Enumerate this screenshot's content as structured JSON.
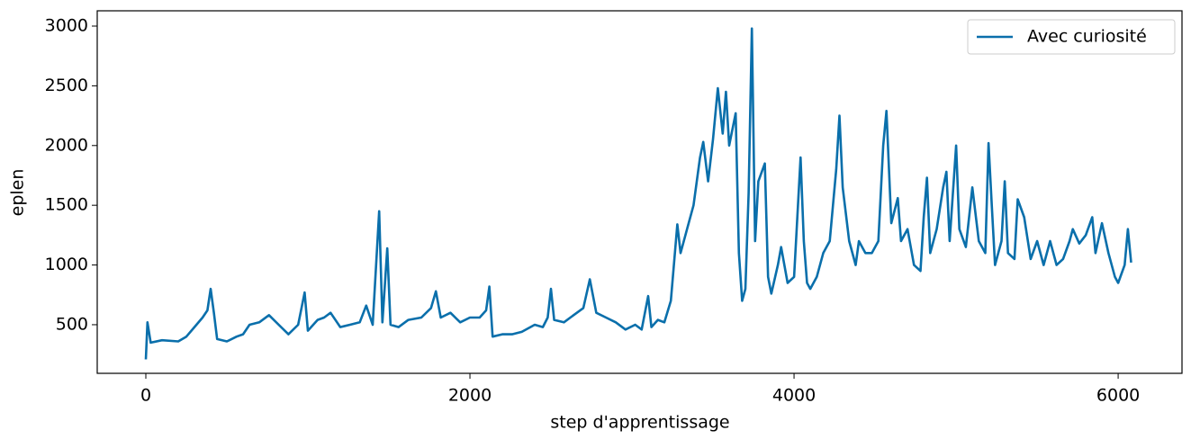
{
  "chart_data": {
    "type": "line",
    "xlabel": "step d'apprentissage",
    "ylabel": "eplen",
    "x": [
      0,
      10,
      30,
      100,
      200,
      250,
      300,
      350,
      380,
      400,
      420,
      440,
      500,
      560,
      600,
      640,
      700,
      760,
      820,
      880,
      940,
      980,
      1000,
      1060,
      1100,
      1140,
      1200,
      1260,
      1320,
      1360,
      1400,
      1440,
      1460,
      1490,
      1510,
      1560,
      1620,
      1700,
      1760,
      1790,
      1820,
      1880,
      1940,
      2000,
      2060,
      2100,
      2120,
      2140,
      2200,
      2260,
      2320,
      2400,
      2450,
      2480,
      2500,
      2520,
      2580,
      2640,
      2700,
      2740,
      2780,
      2840,
      2900,
      2960,
      3020,
      3060,
      3100,
      3120,
      3160,
      3200,
      3240,
      3280,
      3300,
      3340,
      3380,
      3420,
      3440,
      3470,
      3500,
      3530,
      3560,
      3580,
      3600,
      3640,
      3660,
      3680,
      3700,
      3720,
      3740,
      3760,
      3780,
      3820,
      3840,
      3860,
      3900,
      3920,
      3960,
      4000,
      4040,
      4060,
      4080,
      4100,
      4140,
      4180,
      4220,
      4260,
      4280,
      4300,
      4340,
      4380,
      4400,
      4440,
      4480,
      4520,
      4550,
      4570,
      4600,
      4640,
      4660,
      4700,
      4740,
      4780,
      4800,
      4820,
      4840,
      4880,
      4920,
      4940,
      4960,
      5000,
      5020,
      5060,
      5100,
      5140,
      5180,
      5200,
      5220,
      5240,
      5280,
      5300,
      5320,
      5360,
      5380,
      5420,
      5460,
      5500,
      5540,
      5580,
      5620,
      5660,
      5700,
      5720,
      5760,
      5800,
      5840,
      5860,
      5900,
      5940,
      5980,
      6000,
      6040,
      6060,
      6080
    ],
    "series": [
      {
        "name": "Avec curiosité",
        "color": "#0a6fab",
        "values": [
          210,
          520,
          350,
          370,
          360,
          400,
          480,
          560,
          620,
          800,
          600,
          380,
          360,
          400,
          420,
          500,
          520,
          580,
          500,
          420,
          500,
          770,
          450,
          540,
          560,
          600,
          480,
          500,
          520,
          660,
          500,
          1450,
          520,
          1140,
          500,
          480,
          540,
          560,
          640,
          780,
          560,
          600,
          520,
          560,
          560,
          620,
          820,
          400,
          420,
          420,
          440,
          500,
          480,
          560,
          800,
          540,
          520,
          580,
          640,
          880,
          600,
          560,
          520,
          460,
          500,
          460,
          740,
          480,
          540,
          520,
          700,
          1340,
          1100,
          1300,
          1500,
          1900,
          2030,
          1700,
          2050,
          2480,
          2100,
          2450,
          2000,
          2270,
          1100,
          700,
          800,
          1600,
          2980,
          1200,
          1700,
          1850,
          900,
          760,
          1000,
          1150,
          850,
          900,
          1900,
          1200,
          850,
          800,
          900,
          1100,
          1200,
          1800,
          2250,
          1650,
          1200,
          1000,
          1200,
          1100,
          1100,
          1200,
          2000,
          2290,
          1350,
          1560,
          1200,
          1300,
          1000,
          950,
          1400,
          1730,
          1100,
          1300,
          1650,
          1780,
          1200,
          2000,
          1300,
          1150,
          1650,
          1200,
          1100,
          2020,
          1500,
          1000,
          1200,
          1700,
          1100,
          1050,
          1550,
          1400,
          1050,
          1200,
          1000,
          1200,
          1000,
          1050,
          1200,
          1300,
          1180,
          1250,
          1400,
          1100,
          1350,
          1100,
          900,
          850,
          1000,
          1300,
          1020
        ]
      }
    ],
    "xlim": [
      -300,
      6394
    ],
    "ylim": [
      93,
      3128
    ],
    "xticks": [
      0,
      2000,
      4000,
      6000
    ],
    "yticks": [
      500,
      1000,
      1500,
      2000,
      2500,
      3000
    ],
    "grid": false,
    "legend": "upper right"
  }
}
